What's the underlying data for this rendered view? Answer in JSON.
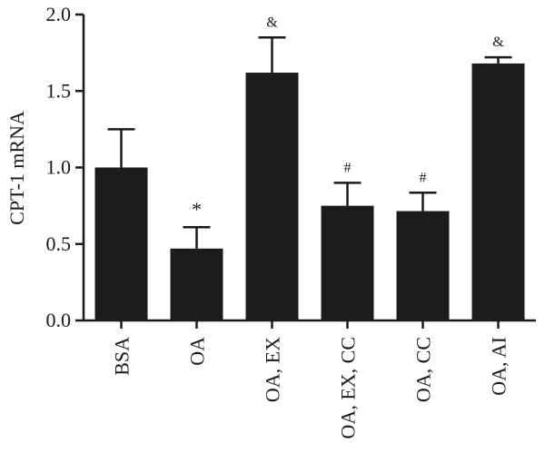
{
  "chart_data": {
    "type": "bar",
    "title": "",
    "xlabel": "",
    "ylabel": "CPT-1 mRNA",
    "ylim": [
      0,
      2.0
    ],
    "yticks": [
      "0.0",
      "0.5",
      "1.0",
      "1.5",
      "2.0"
    ],
    "grid": false,
    "categories": [
      "BSA",
      "OA",
      "OA, EX",
      "OA, EX, CC",
      "OA, CC",
      "OA, AI"
    ],
    "values": [
      1.0,
      0.47,
      1.62,
      0.75,
      0.715,
      1.68
    ],
    "errors": [
      0.25,
      0.14,
      0.23,
      0.15,
      0.12,
      0.04
    ],
    "annotations": [
      "",
      "*",
      "&",
      "#",
      "#",
      "&"
    ],
    "colors": {
      "bar": "#1c1c1c",
      "axis": "#1a1a1a"
    }
  }
}
